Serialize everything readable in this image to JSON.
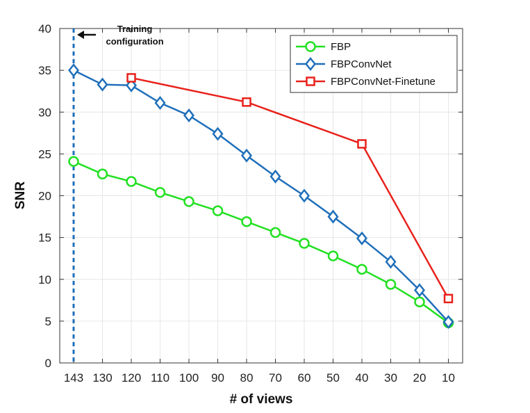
{
  "chart_data": {
    "type": "line",
    "xlabel": "# of views",
    "ylabel": "SNR",
    "categories": [
      "143",
      "130",
      "120",
      "110",
      "100",
      "90",
      "80",
      "70",
      "60",
      "50",
      "40",
      "30",
      "20",
      "10"
    ],
    "ylim": [
      0,
      40
    ],
    "yticks": [
      0,
      5,
      10,
      15,
      20,
      25,
      30,
      35,
      40
    ],
    "grid": true,
    "legend_position": "top-right",
    "series": [
      {
        "name": "FBP",
        "color": "#22e022",
        "marker": "circle",
        "values": [
          24.1,
          22.6,
          21.7,
          20.4,
          19.3,
          18.2,
          16.9,
          15.6,
          14.3,
          12.8,
          11.2,
          9.4,
          7.3,
          4.8
        ]
      },
      {
        "name": "FBPConvNet",
        "color": "#1f6fba",
        "marker": "diamond",
        "values": [
          35.0,
          33.3,
          33.2,
          31.1,
          29.6,
          27.4,
          24.8,
          22.3,
          20.0,
          17.5,
          14.9,
          12.1,
          8.7,
          4.9
        ]
      },
      {
        "name": "FBPConvNet-Finetune",
        "color": "#e8221c",
        "marker": "square",
        "values": [
          null,
          null,
          34.1,
          null,
          null,
          null,
          31.2,
          null,
          null,
          null,
          26.2,
          null,
          null,
          7.7
        ]
      }
    ],
    "annotation": {
      "line1": "Training",
      "line2": "configuration",
      "at_category": "143",
      "line_color": "#1f6fba"
    }
  }
}
